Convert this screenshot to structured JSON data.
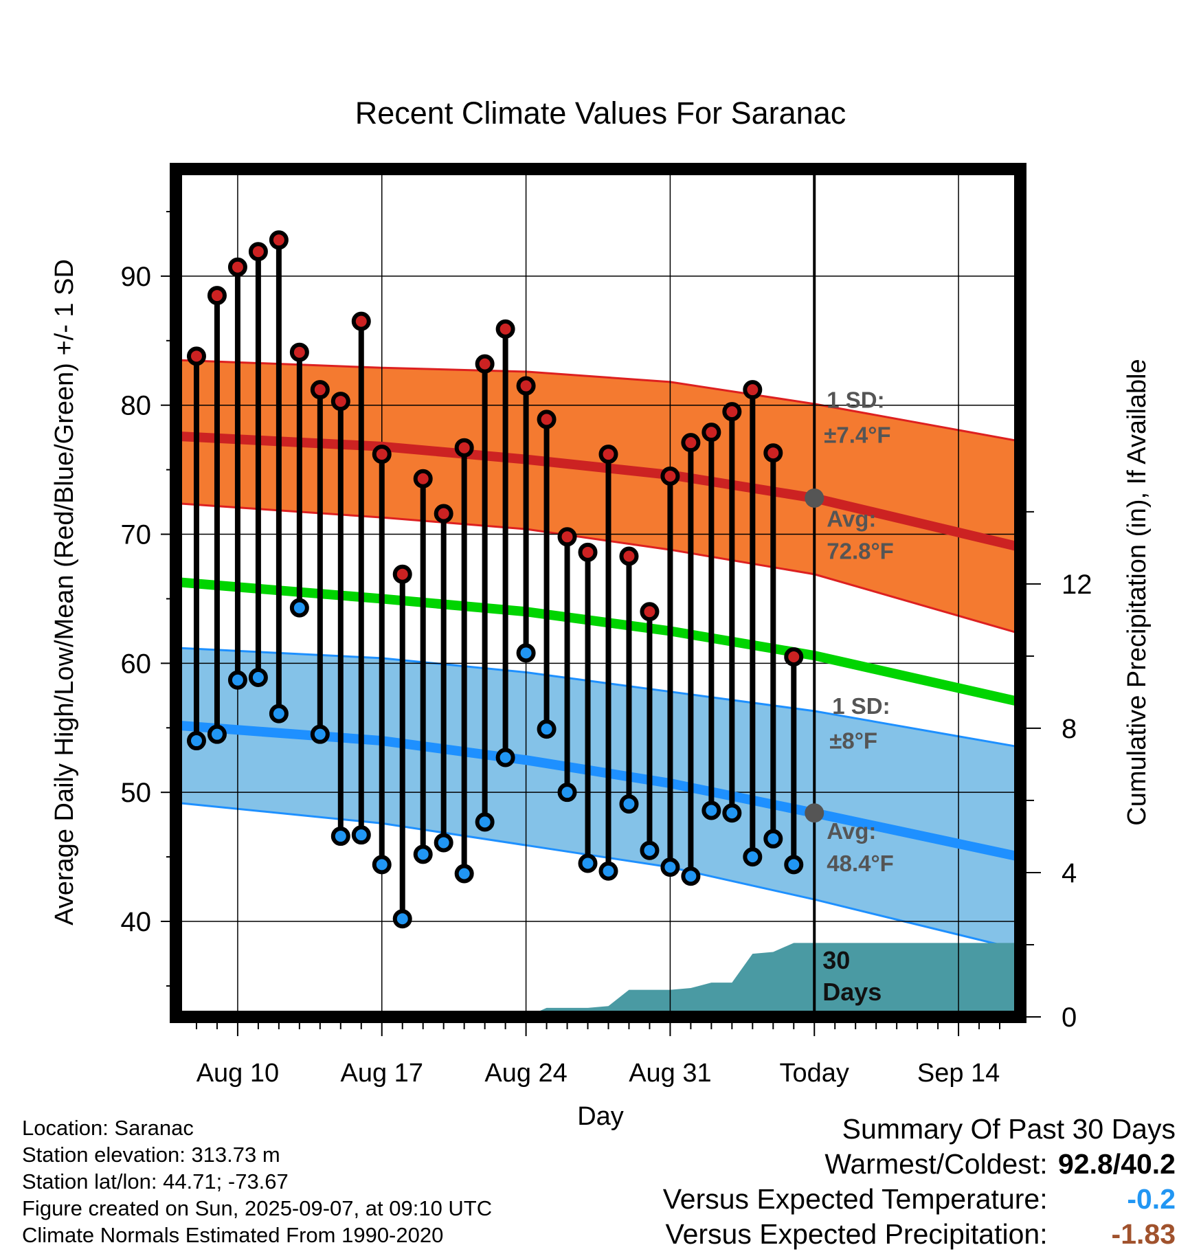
{
  "chart_data": {
    "type": "line",
    "title": "Recent Climate Values For Saranac",
    "xlabel": "Day",
    "ylabel": "Average Daily High/Low/Mean (Red/Blue/Green) +/- 1 SD",
    "y2label": "Cumulative Precipitation (in), If Available",
    "x_ticks": [
      "Aug 10",
      "Aug 17",
      "Aug 24",
      "Aug 31",
      "Today",
      "Sep 14"
    ],
    "y_ticks": [
      40,
      50,
      60,
      70,
      80,
      90
    ],
    "y2_ticks": [
      0,
      4,
      8,
      12
    ],
    "ylim": [
      32.6,
      98.3
    ],
    "y2lim": [
      0,
      23.5
    ],
    "xlim": [
      "2025-08-07",
      "2025-09-17"
    ],
    "dates": [
      "2025-08-08",
      "2025-08-09",
      "2025-08-10",
      "2025-08-11",
      "2025-08-12",
      "2025-08-13",
      "2025-08-14",
      "2025-08-15",
      "2025-08-16",
      "2025-08-17",
      "2025-08-18",
      "2025-08-19",
      "2025-08-20",
      "2025-08-21",
      "2025-08-22",
      "2025-08-23",
      "2025-08-24",
      "2025-08-25",
      "2025-08-26",
      "2025-08-27",
      "2025-08-28",
      "2025-08-29",
      "2025-08-30",
      "2025-08-31",
      "2025-09-01",
      "2025-09-02",
      "2025-09-03",
      "2025-09-04",
      "2025-09-05",
      "2025-09-06"
    ],
    "series": [
      {
        "name": "High",
        "color": "#cc2222",
        "values": [
          83.8,
          88.5,
          90.7,
          91.9,
          92.8,
          84.1,
          81.2,
          80.3,
          86.5,
          76.2,
          66.9,
          74.3,
          71.6,
          76.7,
          83.2,
          85.9,
          81.5,
          78.9,
          69.8,
          68.6,
          76.2,
          68.3,
          64.0,
          74.5,
          77.1,
          77.9,
          79.5,
          81.2,
          76.3,
          60.5
        ]
      },
      {
        "name": "Low",
        "color": "#2196f3",
        "values": [
          54.0,
          54.5,
          58.7,
          58.9,
          56.1,
          64.3,
          54.5,
          46.6,
          46.7,
          44.4,
          40.2,
          45.2,
          46.1,
          43.7,
          47.7,
          52.7,
          60.8,
          54.9,
          50.0,
          44.5,
          43.9,
          49.1,
          45.5,
          44.2,
          43.5,
          48.6,
          48.4,
          45.0,
          46.4,
          44.4
        ]
      }
    ],
    "normals": {
      "dates": [
        "2025-08-07",
        "2025-08-17",
        "2025-08-24",
        "2025-08-31",
        "2025-09-07",
        "2025-09-17"
      ],
      "high_mean": [
        77.6,
        76.8,
        75.8,
        74.6,
        72.8,
        69.0
      ],
      "high_upper": [
        83.5,
        82.9,
        82.6,
        81.8,
        80.1,
        77.2
      ],
      "high_lower": [
        72.4,
        71.3,
        70.4,
        68.8,
        66.9,
        62.3
      ],
      "mean": [
        66.3,
        65.0,
        64.0,
        62.5,
        60.6,
        57.0
      ],
      "low_mean": [
        55.2,
        54.0,
        52.5,
        50.7,
        48.4,
        45.0
      ],
      "low_upper": [
        61.2,
        60.4,
        59.3,
        57.8,
        56.3,
        53.5
      ],
      "low_lower": [
        49.2,
        47.6,
        45.9,
        44.2,
        41.7,
        37.8
      ]
    },
    "precipitation": {
      "dates": [
        "2025-08-24",
        "2025-08-25",
        "2025-08-26",
        "2025-08-27",
        "2025-08-28",
        "2025-08-29",
        "2025-08-30",
        "2025-08-31",
        "2025-09-01",
        "2025-09-02",
        "2025-09-03",
        "2025-09-04",
        "2025-09-05",
        "2025-09-06",
        "2025-09-07",
        "2025-09-17"
      ],
      "values": [
        0,
        0.25,
        0.25,
        0.25,
        0.3,
        0.75,
        0.75,
        0.75,
        0.8,
        0.95,
        0.95,
        1.75,
        1.8,
        2.05,
        2.05,
        2.05
      ]
    },
    "grid": true,
    "today_label": "30\nDays",
    "annotations": {
      "high_sd": "1 SD:",
      "high_sd_value": "±7.4°F",
      "high_avg": "Avg:",
      "high_avg_value": "72.8°F",
      "low_sd": "1 SD:",
      "low_sd_value": "±8°F",
      "low_avg": "Avg:",
      "low_avg_value": "48.4°F"
    }
  },
  "info": {
    "location": "Location: Saranac",
    "elevation": "Station elevation: 313.73 m",
    "latlon": "Station lat/lon: 44.71; -73.67",
    "created": "Figure created on Sun, 2025-09-07, at 09:10 UTC",
    "normals": "Climate Normals Estimated From 1990-2020"
  },
  "summary": {
    "title": "Summary Of Past 30 Days",
    "warm_cold_label": "Warmest/Coldest:",
    "warm_cold_value": "92.8/40.2",
    "temp_label": "Versus Expected Temperature:",
    "temp_value": "-0.2",
    "temp_color": "#2196f3",
    "precip_label": "Versus Expected Precipitation:",
    "precip_value": "-1.83",
    "precip_color": "#a0522d"
  }
}
